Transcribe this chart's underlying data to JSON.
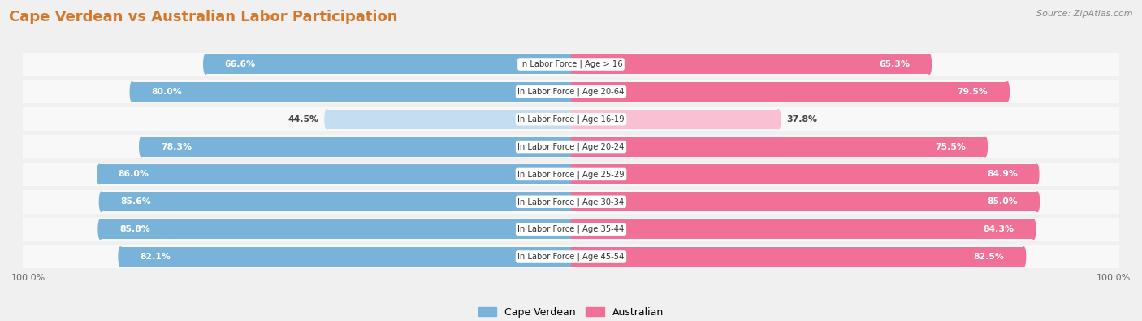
{
  "title": "Cape Verdean vs Australian Labor Participation",
  "source": "Source: ZipAtlas.com",
  "categories": [
    "In Labor Force | Age > 16",
    "In Labor Force | Age 20-64",
    "In Labor Force | Age 16-19",
    "In Labor Force | Age 20-24",
    "In Labor Force | Age 25-29",
    "In Labor Force | Age 30-34",
    "In Labor Force | Age 35-44",
    "In Labor Force | Age 45-54"
  ],
  "cape_verdean": [
    66.6,
    80.0,
    44.5,
    78.3,
    86.0,
    85.6,
    85.8,
    82.1
  ],
  "australian": [
    65.3,
    79.5,
    37.8,
    75.5,
    84.9,
    85.0,
    84.3,
    82.5
  ],
  "cape_verdean_color": "#7ab3d9",
  "australian_color": "#f07098",
  "cape_verdean_light": "#c5ddf0",
  "australian_light": "#f9c0d4",
  "bg_color": "#f0f0f0",
  "bar_row_bg": "#ffffff",
  "gap_row_bg": "#e8e8e8",
  "bar_height": 0.72,
  "max_val": 100.0,
  "legend_cape_verdean": "Cape Verdean",
  "legend_australian": "Australian",
  "title_color": "#d4772a",
  "source_color": "#888888",
  "label_fontsize": 7.8,
  "cat_fontsize": 7.2,
  "title_fontsize": 13
}
